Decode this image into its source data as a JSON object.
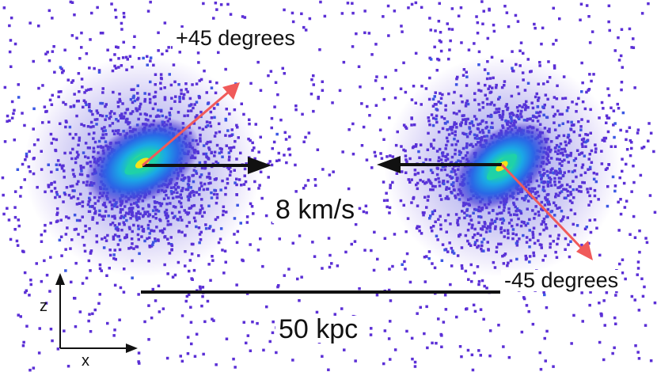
{
  "labels": {
    "angle_left": "+45 degrees",
    "angle_right": "-45 degrees",
    "velocity": "8 km/s",
    "separation": "50 kpc",
    "axis_z": "z",
    "axis_x": "x"
  },
  "colors": {
    "particles": "#5b2fd6",
    "halo": "#3a4fe0",
    "core": "#2bd1a0",
    "nucleus": "#e8d21e",
    "velocity_arrow": "#111111",
    "spin_arrow": "#f05a5a",
    "scale_bar": "#111111"
  }
}
